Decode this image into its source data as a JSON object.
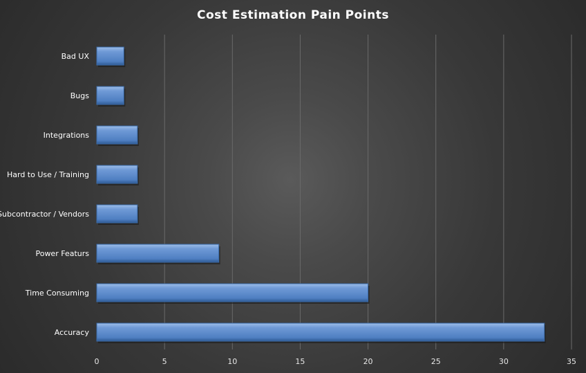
{
  "chart_data": {
    "type": "bar",
    "orientation": "horizontal",
    "title": "Cost Estimation Pain Points",
    "xlabel": "",
    "ylabel": "",
    "categories": [
      "Accuracy",
      "Time Consuming",
      "Power Featurs",
      "Subcontractor / Vendors",
      "Hard to Use / Training",
      "Integrations",
      "Bugs",
      "Bad UX"
    ],
    "values": [
      33,
      20,
      9,
      3,
      3,
      3,
      2,
      2
    ],
    "xlim": [
      0,
      35
    ],
    "xticks": [
      "0",
      "5",
      "10",
      "15",
      "20",
      "25",
      "30",
      "35"
    ],
    "grid": true,
    "legend": "none",
    "colors": {
      "bar": "#4f81bd",
      "background": "#333333",
      "grid": "#6a6a6a"
    }
  }
}
